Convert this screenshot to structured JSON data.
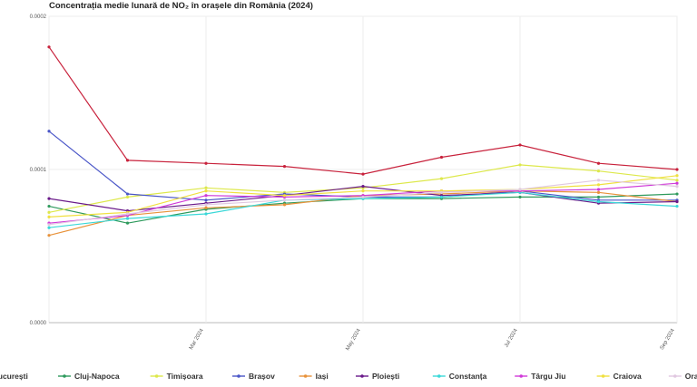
{
  "chart_data": {
    "type": "line",
    "title": "Concentrația medie lunară de NO₂ în orașele din România (2024)",
    "xlabel": "",
    "ylabel": "",
    "x": [
      "2024-01",
      "2024-02",
      "2024-03",
      "2024-04",
      "2024-05",
      "2024-06",
      "2024-07",
      "2024-08",
      "2024-09"
    ],
    "x_ticks": [
      "Mar 2024",
      "May 2024",
      "Jul 2024",
      "Sep 2024"
    ],
    "x_tick_index": [
      2,
      4,
      6,
      8
    ],
    "y_ticks": [
      "0.0000",
      "0.0001",
      "0.0002"
    ],
    "y_tick_values": [
      0,
      0.0001,
      0.0002
    ],
    "ylim": [
      0,
      0.0002
    ],
    "grid": true,
    "legend_position": "bottom",
    "series": [
      {
        "name": "București",
        "color": "#c8223c",
        "values": [
          0.00018,
          0.000106,
          0.000104,
          0.000102,
          9.7e-05,
          0.000108,
          0.000116,
          0.000104,
          0.0001
        ]
      },
      {
        "name": "Cluj-Napoca",
        "color": "#2e9a5c",
        "values": [
          7.6e-05,
          6.5e-05,
          7.4e-05,
          7.8e-05,
          8.1e-05,
          8.1e-05,
          8.2e-05,
          8.2e-05,
          8.4e-05
        ]
      },
      {
        "name": "Timișoara",
        "color": "#dde84a",
        "values": [
          7.2e-05,
          8.2e-05,
          8.8e-05,
          8.5e-05,
          8.8e-05,
          9.4e-05,
          0.000103,
          9.9e-05,
          9.3e-05
        ]
      },
      {
        "name": "Brașov",
        "color": "#4a56c8",
        "values": [
          0.000125,
          8.4e-05,
          8e-05,
          8.4e-05,
          8.2e-05,
          8.2e-05,
          8.6e-05,
          8e-05,
          8e-05
        ]
      },
      {
        "name": "Iași",
        "color": "#e8923a",
        "values": [
          5.7e-05,
          7e-05,
          7.5e-05,
          7.7e-05,
          8.3e-05,
          8.4e-05,
          8.6e-05,
          8.5e-05,
          7.9e-05
        ]
      },
      {
        "name": "Ploiești",
        "color": "#6a1a8a",
        "values": [
          8.1e-05,
          7.3e-05,
          7.8e-05,
          8.3e-05,
          8.9e-05,
          8.3e-05,
          8.5e-05,
          7.8e-05,
          7.9e-05
        ]
      },
      {
        "name": "Constanța",
        "color": "#3ad8d8",
        "values": [
          6.2e-05,
          6.8e-05,
          7.1e-05,
          8e-05,
          8.1e-05,
          8.2e-05,
          8.5e-05,
          7.9e-05,
          7.6e-05
        ]
      },
      {
        "name": "Târgu Jiu",
        "color": "#d03ad8",
        "values": [
          6.5e-05,
          7e-05,
          8.3e-05,
          8.2e-05,
          8.3e-05,
          8.6e-05,
          8.6e-05,
          8.7e-05,
          9.1e-05
        ]
      },
      {
        "name": "Craiova",
        "color": "#f0e040",
        "values": [
          6.9e-05,
          7.2e-05,
          8.6e-05,
          8.3e-05,
          8.6e-05,
          8.6e-05,
          8.7e-05,
          9e-05,
          9.6e-05
        ]
      },
      {
        "name": "Oradea",
        "color": "#e0c8e0",
        "values": [
          6.4e-05,
          7.1e-05,
          7.7e-05,
          8e-05,
          8.2e-05,
          8.5e-05,
          8.7e-05,
          9.3e-05,
          8.9e-05
        ]
      }
    ]
  }
}
